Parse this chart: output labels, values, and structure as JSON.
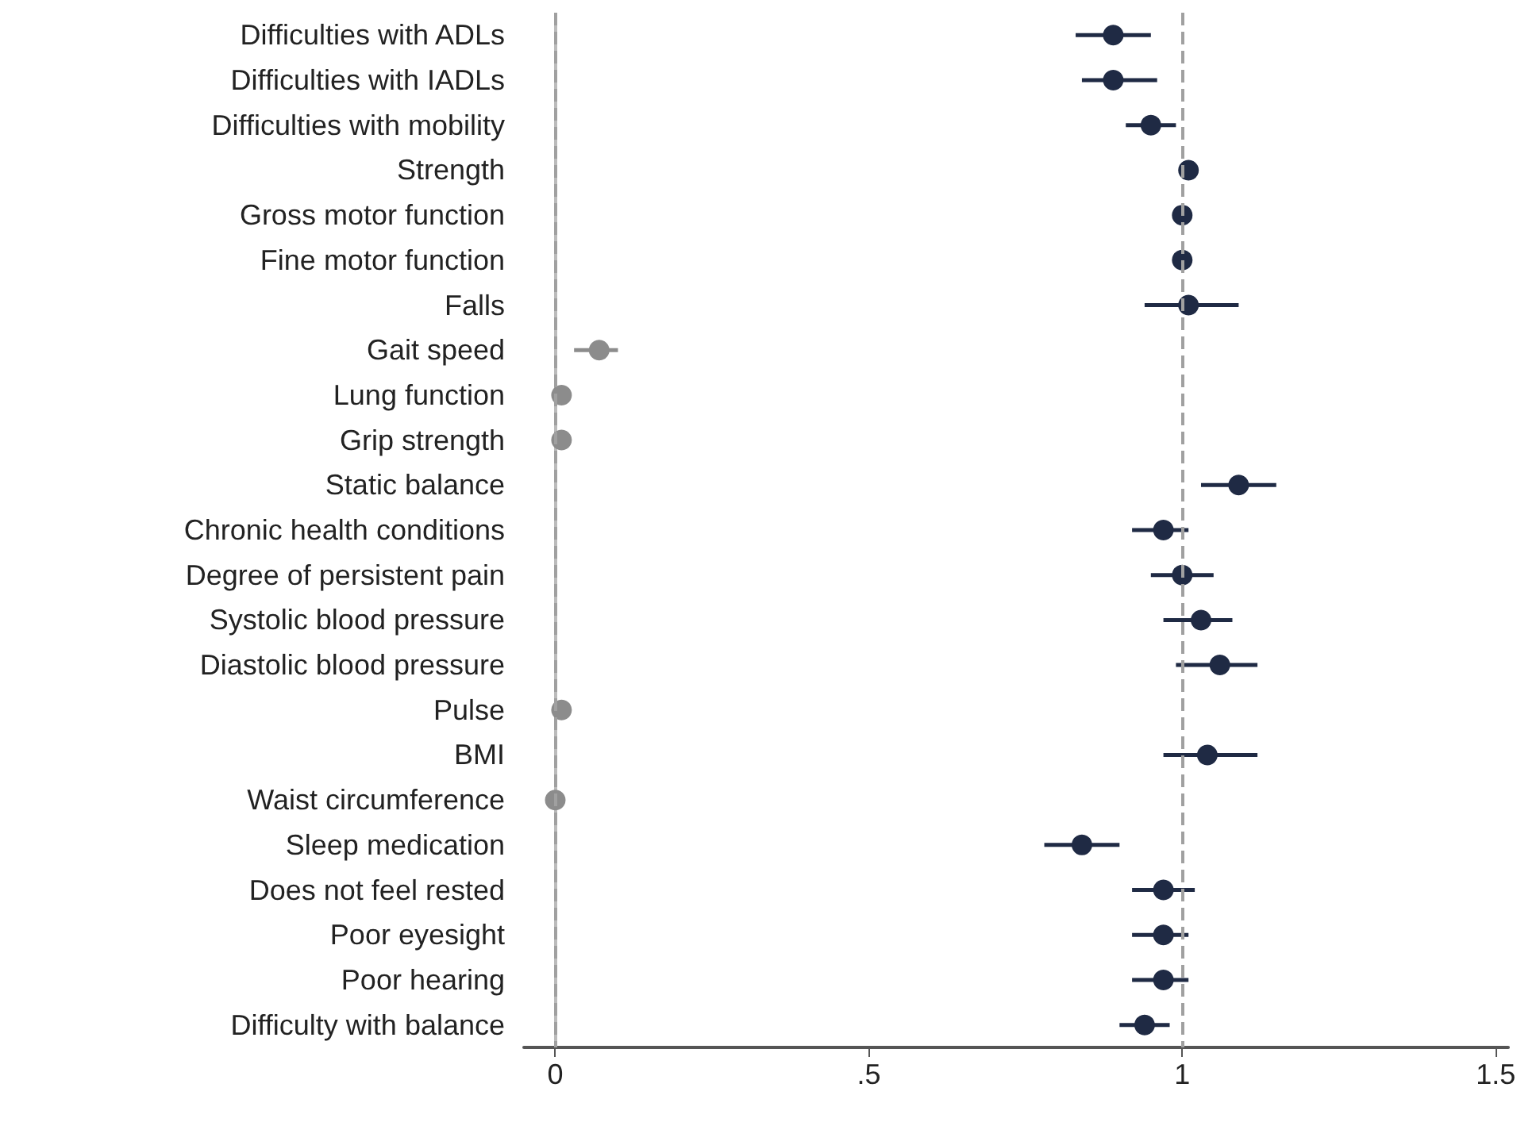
{
  "chart_data": {
    "type": "scatter",
    "orientation": "horizontal",
    "categories": [
      "Difficulties with ADLs",
      "Difficulties with IADLs",
      "Difficulties with mobility",
      "Strength",
      "Gross motor function",
      "Fine motor function",
      "Falls",
      "Gait speed",
      "Lung function",
      "Grip strength",
      "Static balance",
      "Chronic health conditions",
      "Degree of persistent pain",
      "Systolic blood pressure",
      "Diastolic blood pressure",
      "Pulse",
      "BMI",
      "Waist circumference",
      "Sleep medication",
      "Does not feel rested",
      "Poor eyesight",
      "Poor hearing",
      "Difficulty with balance"
    ],
    "series": [
      {
        "color": "#1f2a44",
        "values": [
          0.89,
          0.89,
          0.95,
          1.01,
          1.0,
          1.0,
          1.01,
          null,
          null,
          null,
          1.09,
          0.97,
          1.0,
          1.03,
          1.06,
          null,
          1.04,
          null,
          0.84,
          0.97,
          0.97,
          0.97,
          0.94
        ],
        "errors": [
          [
            0.83,
            0.95
          ],
          [
            0.84,
            0.96
          ],
          [
            0.91,
            0.99
          ],
          null,
          null,
          null,
          [
            0.94,
            1.09
          ],
          null,
          null,
          null,
          [
            1.03,
            1.15
          ],
          [
            0.92,
            1.01
          ],
          [
            0.95,
            1.05
          ],
          [
            0.97,
            1.08
          ],
          [
            0.99,
            1.12
          ],
          null,
          [
            0.97,
            1.12
          ],
          null,
          [
            0.78,
            0.9
          ],
          [
            0.92,
            1.02
          ],
          [
            0.92,
            1.01
          ],
          [
            0.92,
            1.01
          ],
          [
            0.9,
            0.98
          ]
        ]
      },
      {
        "color": "#8c8c8c",
        "values": [
          null,
          null,
          null,
          null,
          null,
          null,
          null,
          0.07,
          0.01,
          0.01,
          null,
          null,
          null,
          null,
          null,
          0.01,
          null,
          0.0,
          null,
          null,
          null,
          null,
          null
        ],
        "errors": [
          null,
          null,
          null,
          null,
          null,
          null,
          null,
          [
            0.03,
            0.1
          ],
          null,
          null,
          null,
          null,
          null,
          null,
          null,
          null,
          null,
          null,
          null,
          null,
          null,
          null,
          null
        ]
      }
    ],
    "xlim": [
      -0.05,
      1.52
    ],
    "xticks": [
      0,
      {
        "value": 0.5,
        "label": ".5"
      },
      1,
      {
        "value": 1.5,
        "label": "1.5"
      }
    ],
    "ref_lines": [
      {
        "axis": "x",
        "value": 0,
        "color": "#a0a0a0",
        "line_style": "dashed"
      },
      {
        "axis": "x",
        "value": 1,
        "color": "#a0a0a0",
        "line_style": "dashed"
      }
    ],
    "grid": false,
    "legend": false,
    "marker": "circle"
  }
}
